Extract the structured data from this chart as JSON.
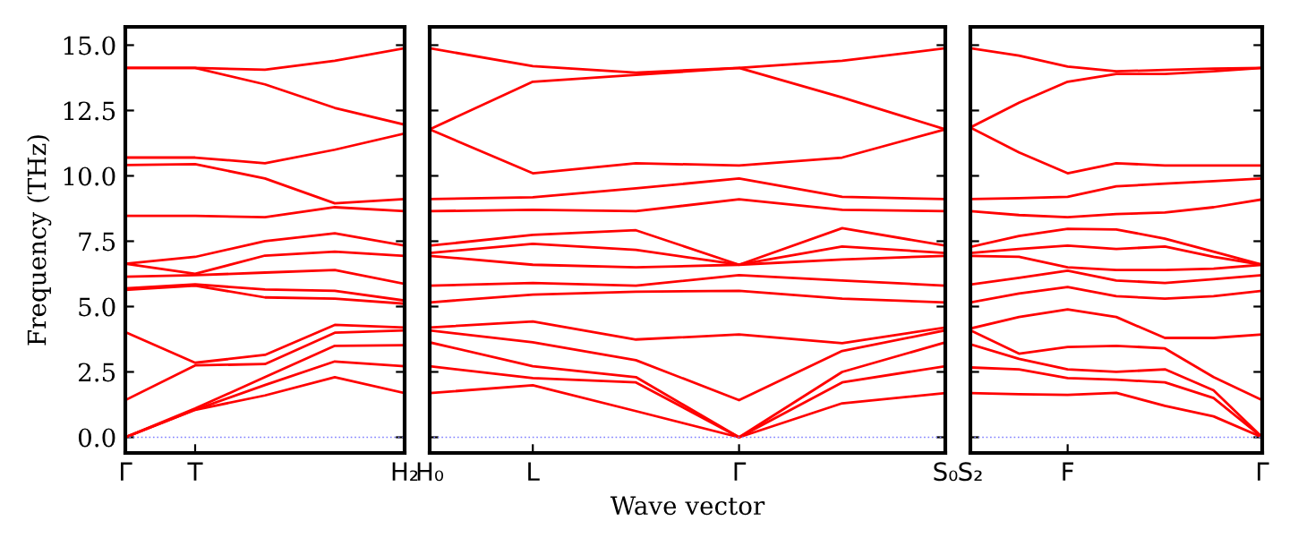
{
  "chart_data": [
    {
      "type": "line",
      "ylabel": "Frequency (THz)",
      "categories": [
        "Γ",
        "T",
        null,
        null,
        "H₂"
      ],
      "ylim": [
        -0.6,
        15.7
      ],
      "yticks": [
        {
          "value": 0,
          "label": "0.0"
        },
        {
          "value": 2.5,
          "label": "2.5"
        },
        {
          "value": 5,
          "label": "5.0"
        },
        {
          "value": 7.5,
          "label": "7.5"
        },
        {
          "value": 10,
          "label": "10.0"
        },
        {
          "value": 12.5,
          "label": "12.5"
        },
        {
          "value": 15,
          "label": "15.0"
        }
      ],
      "ref_lines": [
        {
          "axis": "y",
          "value": 0,
          "color": "#8080ff",
          "line_style": "dotted"
        }
      ],
      "series": [
        {
          "color": "#ff0000",
          "values": [
            0,
            1.05,
            1.6,
            2.3,
            1.69
          ]
        },
        {
          "color": "#ff0000",
          "values": [
            0,
            1.05,
            2.0,
            2.9,
            2.72
          ]
        },
        {
          "color": "#ff0000",
          "values": [
            0,
            1.1,
            2.3,
            3.5,
            3.52
          ]
        },
        {
          "color": "#ff0000",
          "values": [
            1.42,
            2.75,
            2.8,
            4.0,
            4.09
          ]
        },
        {
          "color": "#ff0000",
          "values": [
            4.02,
            2.85,
            3.15,
            4.3,
            4.2
          ]
        },
        {
          "color": "#ff0000",
          "values": [
            5.64,
            5.8,
            5.35,
            5.3,
            5.11
          ]
        },
        {
          "color": "#ff0000",
          "values": [
            5.7,
            5.85,
            5.65,
            5.6,
            5.23
          ]
        },
        {
          "color": "#ff0000",
          "values": [
            6.14,
            6.2,
            6.3,
            6.4,
            5.87
          ]
        },
        {
          "color": "#ff0000",
          "values": [
            6.64,
            6.25,
            6.95,
            7.1,
            6.94
          ]
        },
        {
          "color": "#ff0000",
          "values": [
            6.64,
            6.9,
            7.5,
            7.8,
            7.33
          ]
        },
        {
          "color": "#ff0000",
          "values": [
            8.47,
            8.47,
            8.42,
            8.8,
            8.65
          ]
        },
        {
          "color": "#ff0000",
          "values": [
            10.41,
            10.45,
            9.9,
            8.95,
            9.11
          ]
        },
        {
          "color": "#ff0000",
          "values": [
            10.7,
            10.7,
            10.48,
            11.0,
            11.62
          ]
        },
        {
          "color": "#ff0000",
          "values": [
            14.13,
            14.13,
            13.5,
            12.6,
            11.96
          ]
        },
        {
          "color": "#ff0000",
          "values": [
            14.13,
            14.13,
            14.06,
            14.4,
            14.88
          ]
        }
      ]
    },
    {
      "type": "line",
      "xlabel": "Wave vector",
      "categories": [
        "H₀",
        "L",
        null,
        "Γ",
        null,
        "S₀"
      ],
      "ylim": [
        -0.6,
        15.7
      ],
      "yticks": [
        {
          "value": 0,
          "label": null
        },
        {
          "value": 2.5,
          "label": null
        },
        {
          "value": 5,
          "label": null
        },
        {
          "value": 7.5,
          "label": null
        },
        {
          "value": 10,
          "label": null
        },
        {
          "value": 12.5,
          "label": null
        },
        {
          "value": 15,
          "label": null
        }
      ],
      "tick_labels": "x",
      "ref_lines": [
        {
          "axis": "y",
          "value": 0,
          "color": "#8080ff",
          "line_style": "dotted"
        }
      ],
      "series": [
        {
          "color": "#ff0000",
          "values": [
            1.69,
            1.99,
            1.0,
            0,
            1.3,
            1.69
          ]
        },
        {
          "color": "#ff0000",
          "values": [
            2.72,
            2.26,
            2.1,
            0,
            2.1,
            2.72
          ]
        },
        {
          "color": "#ff0000",
          "values": [
            3.63,
            2.72,
            2.3,
            0,
            2.5,
            3.63
          ]
        },
        {
          "color": "#ff0000",
          "values": [
            4.09,
            3.63,
            2.95,
            1.42,
            3.3,
            4.09
          ]
        },
        {
          "color": "#ff0000",
          "values": [
            4.2,
            4.43,
            3.74,
            3.93,
            3.6,
            4.2
          ]
        },
        {
          "color": "#ff0000",
          "values": [
            5.16,
            5.46,
            5.57,
            5.6,
            5.3,
            5.16
          ]
        },
        {
          "color": "#ff0000",
          "values": [
            5.8,
            5.9,
            5.8,
            6.2,
            6.0,
            5.8
          ]
        },
        {
          "color": "#ff0000",
          "values": [
            6.94,
            6.6,
            6.5,
            6.6,
            6.8,
            6.94
          ]
        },
        {
          "color": "#ff0000",
          "values": [
            7.05,
            7.4,
            7.17,
            6.6,
            7.3,
            7.05
          ]
        },
        {
          "color": "#ff0000",
          "values": [
            7.33,
            7.74,
            7.92,
            6.6,
            8.0,
            7.33
          ]
        },
        {
          "color": "#ff0000",
          "values": [
            8.65,
            8.7,
            8.65,
            9.1,
            8.7,
            8.65
          ]
        },
        {
          "color": "#ff0000",
          "values": [
            9.11,
            9.18,
            9.52,
            9.9,
            9.2,
            9.11
          ]
        },
        {
          "color": "#ff0000",
          "values": [
            11.78,
            10.1,
            10.48,
            10.4,
            10.7,
            11.78
          ]
        },
        {
          "color": "#ff0000",
          "values": [
            11.78,
            13.6,
            13.86,
            14.13,
            13.0,
            11.78
          ]
        },
        {
          "color": "#ff0000",
          "values": [
            14.88,
            14.2,
            13.95,
            14.13,
            14.4,
            14.88
          ]
        }
      ]
    },
    {
      "type": "line",
      "categories": [
        "S₂",
        null,
        "F",
        null,
        null,
        null,
        "Γ"
      ],
      "ylim": [
        -0.6,
        15.7
      ],
      "yticks": [
        {
          "value": 0,
          "label": null
        },
        {
          "value": 2.5,
          "label": null
        },
        {
          "value": 5,
          "label": null
        },
        {
          "value": 7.5,
          "label": null
        },
        {
          "value": 10,
          "label": null
        },
        {
          "value": 12.5,
          "label": null
        },
        {
          "value": 15,
          "label": null
        }
      ],
      "tick_labels": "x",
      "ref_lines": [
        {
          "axis": "y",
          "value": 0,
          "color": "#8080ff",
          "line_style": "dotted"
        }
      ],
      "series": [
        {
          "color": "#ff0000",
          "values": [
            1.69,
            1.65,
            1.62,
            1.7,
            1.2,
            0.8,
            0
          ]
        },
        {
          "color": "#ff0000",
          "values": [
            2.67,
            2.6,
            2.26,
            2.2,
            2.1,
            1.5,
            0
          ]
        },
        {
          "color": "#ff0000",
          "values": [
            3.56,
            3.0,
            2.6,
            2.5,
            2.6,
            1.8,
            0
          ]
        },
        {
          "color": "#ff0000",
          "values": [
            4.09,
            3.2,
            3.45,
            3.5,
            3.4,
            2.3,
            1.42
          ]
        },
        {
          "color": "#ff0000",
          "values": [
            4.16,
            4.6,
            4.89,
            4.6,
            3.8,
            3.8,
            3.93
          ]
        },
        {
          "color": "#ff0000",
          "values": [
            5.16,
            5.5,
            5.75,
            5.4,
            5.3,
            5.4,
            5.6
          ]
        },
        {
          "color": "#ff0000",
          "values": [
            5.84,
            6.1,
            6.37,
            6.0,
            5.9,
            6.05,
            6.2
          ]
        },
        {
          "color": "#ff0000",
          "values": [
            6.94,
            6.9,
            6.5,
            6.4,
            6.4,
            6.45,
            6.6
          ]
        },
        {
          "color": "#ff0000",
          "values": [
            7.05,
            7.2,
            7.33,
            7.2,
            7.3,
            6.9,
            6.6
          ]
        },
        {
          "color": "#ff0000",
          "values": [
            7.28,
            7.7,
            7.97,
            7.95,
            7.6,
            7.1,
            6.6
          ]
        },
        {
          "color": "#ff0000",
          "values": [
            8.65,
            8.5,
            8.42,
            8.54,
            8.6,
            8.8,
            9.1
          ]
        },
        {
          "color": "#ff0000",
          "values": [
            9.11,
            9.15,
            9.2,
            9.6,
            9.7,
            9.8,
            9.9
          ]
        },
        {
          "color": "#ff0000",
          "values": [
            11.85,
            10.9,
            10.1,
            10.48,
            10.4,
            10.4,
            10.4
          ]
        },
        {
          "color": "#ff0000",
          "values": [
            11.85,
            12.8,
            13.6,
            13.9,
            13.9,
            14.0,
            14.13
          ]
        },
        {
          "color": "#ff0000",
          "values": [
            14.88,
            14.6,
            14.18,
            14.0,
            14.05,
            14.1,
            14.13
          ]
        }
      ]
    }
  ]
}
